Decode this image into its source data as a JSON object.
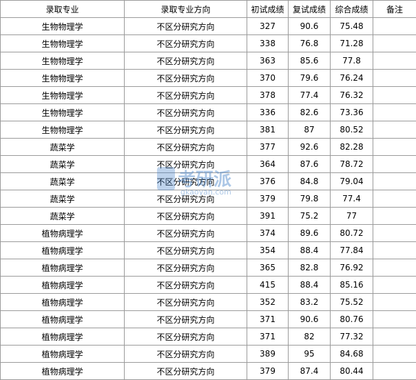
{
  "table": {
    "header": [
      "录取专业",
      "录取专业方向",
      "初试成绩",
      "复试成绩",
      "综合成绩",
      "备注"
    ],
    "rows": [
      [
        "生物物理学",
        "不区分研究方向",
        "327",
        "90.6",
        "75.48"
      ],
      [
        "生物物理学",
        "不区分研究方向",
        "338",
        "76.8",
        "71.28"
      ],
      [
        "生物物理学",
        "不区分研究方向",
        "363",
        "85.6",
        "77.8"
      ],
      [
        "生物物理学",
        "不区分研究方向",
        "370",
        "79.6",
        "76.24"
      ],
      [
        "生物物理学",
        "不区分研究方向",
        "378",
        "77.4",
        "76.32"
      ],
      [
        "生物物理学",
        "不区分研究方向",
        "336",
        "82.6",
        "73.36"
      ],
      [
        "生物物理学",
        "不区分研究方向",
        "381",
        "87",
        "80.52"
      ],
      [
        "蔬菜学",
        "不区分研究方向",
        "377",
        "92.6",
        "82.28"
      ],
      [
        "蔬菜学",
        "不区分研究方向",
        "364",
        "87.6",
        "78.72"
      ],
      [
        "蔬菜学",
        "不区分研究方向",
        "376",
        "84.8",
        "79.04"
      ],
      [
        "蔬菜学",
        "不区分研究方向",
        "379",
        "79.8",
        "77.4"
      ],
      [
        "蔬菜学",
        "不区分研究方向",
        "391",
        "75.2",
        "77"
      ],
      [
        "植物病理学",
        "不区分研究方向",
        "374",
        "89.6",
        "80.72"
      ],
      [
        "植物病理学",
        "不区分研究方向",
        "354",
        "88.4",
        "77.84"
      ],
      [
        "植物病理学",
        "不区分研究方向",
        "365",
        "82.8",
        "76.92"
      ],
      [
        "植物病理学",
        "不区分研究方向",
        "415",
        "88.4",
        "85.16"
      ],
      [
        "植物病理学",
        "不区分研究方向",
        "352",
        "83.2",
        "75.52"
      ],
      [
        "植物病理学",
        "不区分研究方向",
        "371",
        "90.6",
        "80.76"
      ],
      [
        "植物病理学",
        "不区分研究方向",
        "371",
        "82",
        "77.32"
      ],
      [
        "植物病理学",
        "不区分研究方向",
        "389",
        "95",
        "84.68"
      ],
      [
        "植物病理学",
        "不区分研究方向",
        "379",
        "87.4",
        "80.44"
      ]
    ]
  },
  "watermark": {
    "title": "考研派",
    "url": "gkaoyan.com"
  }
}
